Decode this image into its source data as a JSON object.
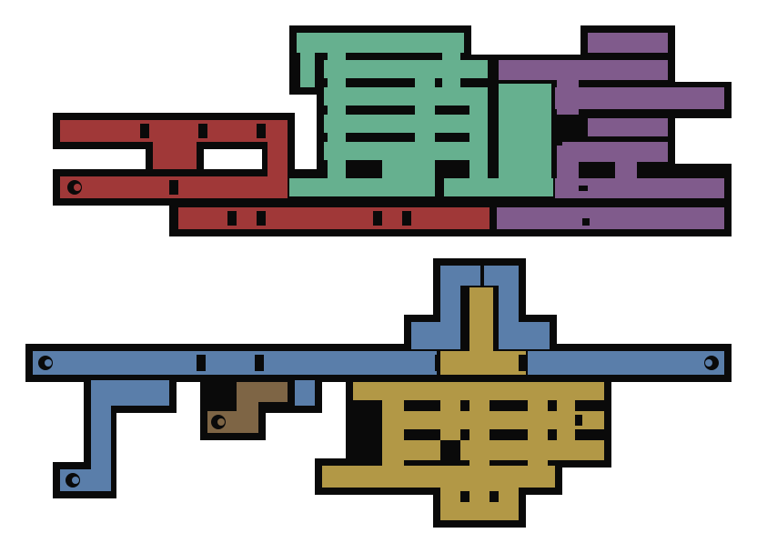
{
  "colors": {
    "background": "#ffffff",
    "wall": "#0a0a0a",
    "green_area": "#66b08f",
    "purple_area": "#805b8c",
    "red_area": "#a03838",
    "blue_area": "#5a7eaa",
    "gold_area": "#b29846",
    "brown_area": "#7e6545"
  },
  "areas": [
    {
      "name": "green-area",
      "color_key": "green_area"
    },
    {
      "name": "purple-area",
      "color_key": "purple_area"
    },
    {
      "name": "red-area",
      "color_key": "red_area"
    },
    {
      "name": "blue-area",
      "color_key": "blue_area"
    },
    {
      "name": "gold-area",
      "color_key": "gold_area"
    },
    {
      "name": "brown-area",
      "color_key": "brown_area"
    }
  ],
  "icons": [
    "exit-door-icon"
  ]
}
